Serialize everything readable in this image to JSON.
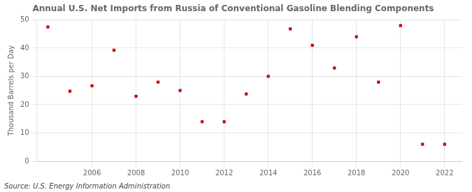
{
  "chart_data": {
    "type": "scatter",
    "title": "Annual U.S. Net Imports from Russia of Conventional Gasoline Blending Components",
    "ylabel": "Thousand Barrels per Day",
    "annotation": "Source: U.S. Energy Information Administration",
    "x": [
      2004,
      2005,
      2006,
      2007,
      2008,
      2009,
      2010,
      2011,
      2012,
      2013,
      2014,
      2015,
      2016,
      2017,
      2018,
      2019,
      2020,
      2021,
      2022
    ],
    "values": [
      47.5,
      24.8,
      26.7,
      39.3,
      23.0,
      28.0,
      25.0,
      14.0,
      14.0,
      23.8,
      30.0,
      46.8,
      41.0,
      33.0,
      44.0,
      28.0,
      48.0,
      6.0,
      6.0
    ],
    "color": "#cc0000",
    "marker": "square",
    "xlim": [
      2003.5,
      2022.8
    ],
    "xticks": [
      2006,
      2008,
      2010,
      2012,
      2014,
      2016,
      2018,
      2020,
      2022
    ],
    "ylim": [
      0,
      50
    ],
    "yticks": [
      0,
      10,
      20,
      30,
      40,
      50
    ],
    "grid": true
  }
}
